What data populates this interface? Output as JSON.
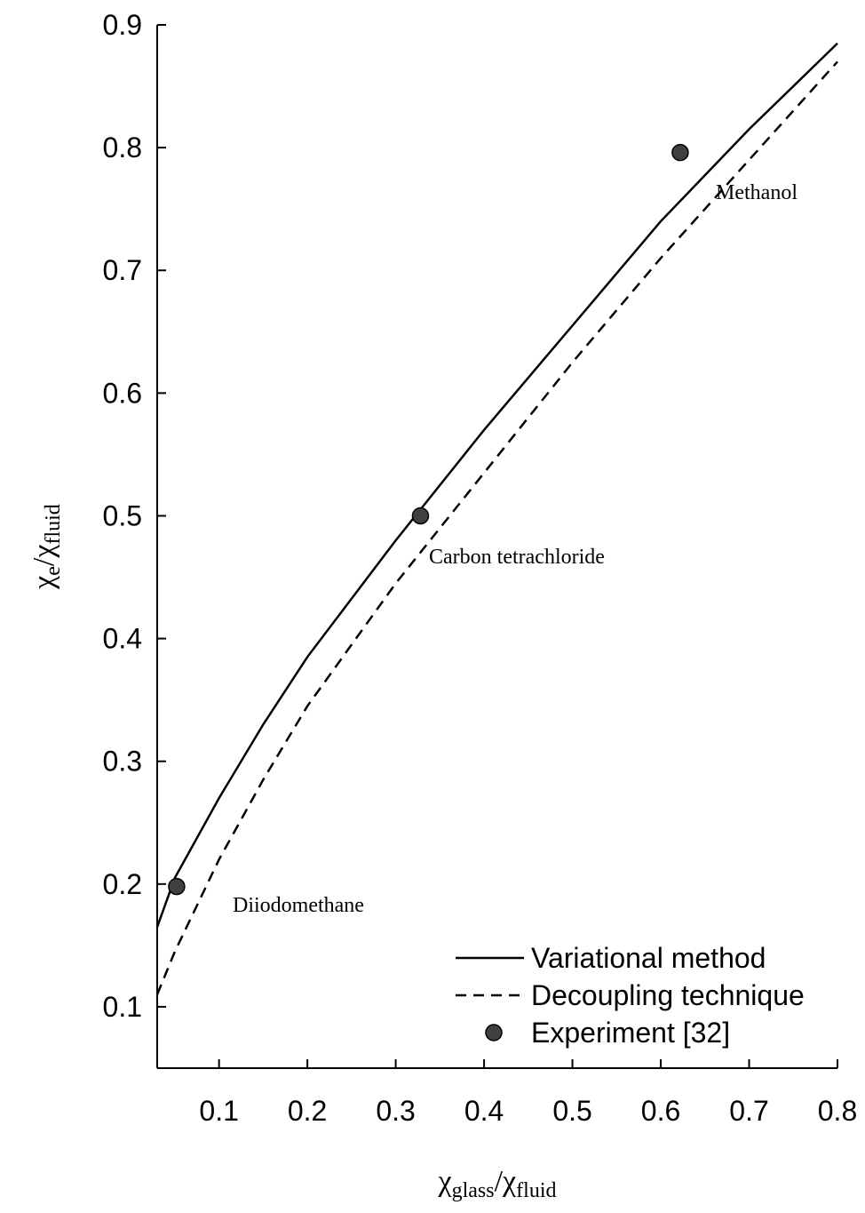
{
  "chart_data": {
    "type": "line",
    "x_label": [
      "χ",
      "glass",
      "/χ",
      "fluid"
    ],
    "y_label": [
      "χ",
      "e",
      "/χ",
      "fluid"
    ],
    "xlim": [
      0.03,
      0.8
    ],
    "xticks": [
      0.1,
      0.2,
      0.3,
      0.4,
      0.5,
      0.6,
      0.7,
      0.8
    ],
    "ylim": [
      0.05,
      0.9
    ],
    "yticks": [
      0.1,
      0.2,
      0.3,
      0.4,
      0.5,
      0.6,
      0.7,
      0.8,
      0.9
    ],
    "legend": "lower right",
    "series": [
      {
        "name": "Variational method",
        "kind": "solid",
        "color": "#000000",
        "x": [
          0.03,
          0.05,
          0.1,
          0.15,
          0.2,
          0.3,
          0.4,
          0.5,
          0.6,
          0.7,
          0.8
        ],
        "values": [
          0.165,
          0.205,
          0.27,
          0.33,
          0.385,
          0.48,
          0.57,
          0.655,
          0.74,
          0.815,
          0.885
        ]
      },
      {
        "name": "Decoupling technique",
        "kind": "dashed",
        "color": "#000000",
        "x": [
          0.03,
          0.05,
          0.1,
          0.15,
          0.2,
          0.3,
          0.4,
          0.5,
          0.6,
          0.7,
          0.8
        ],
        "values": [
          0.11,
          0.145,
          0.22,
          0.285,
          0.345,
          0.445,
          0.535,
          0.625,
          0.71,
          0.79,
          0.87
        ]
      },
      {
        "name": "Experiment [32]",
        "kind": "points",
        "color": "#404040",
        "x": [
          0.052,
          0.328,
          0.622
        ],
        "values": [
          0.198,
          0.5,
          0.796
        ]
      }
    ],
    "annotations": [
      "Diiodomethane",
      "Carbon tetrachloride",
      "Methanol"
    ]
  }
}
